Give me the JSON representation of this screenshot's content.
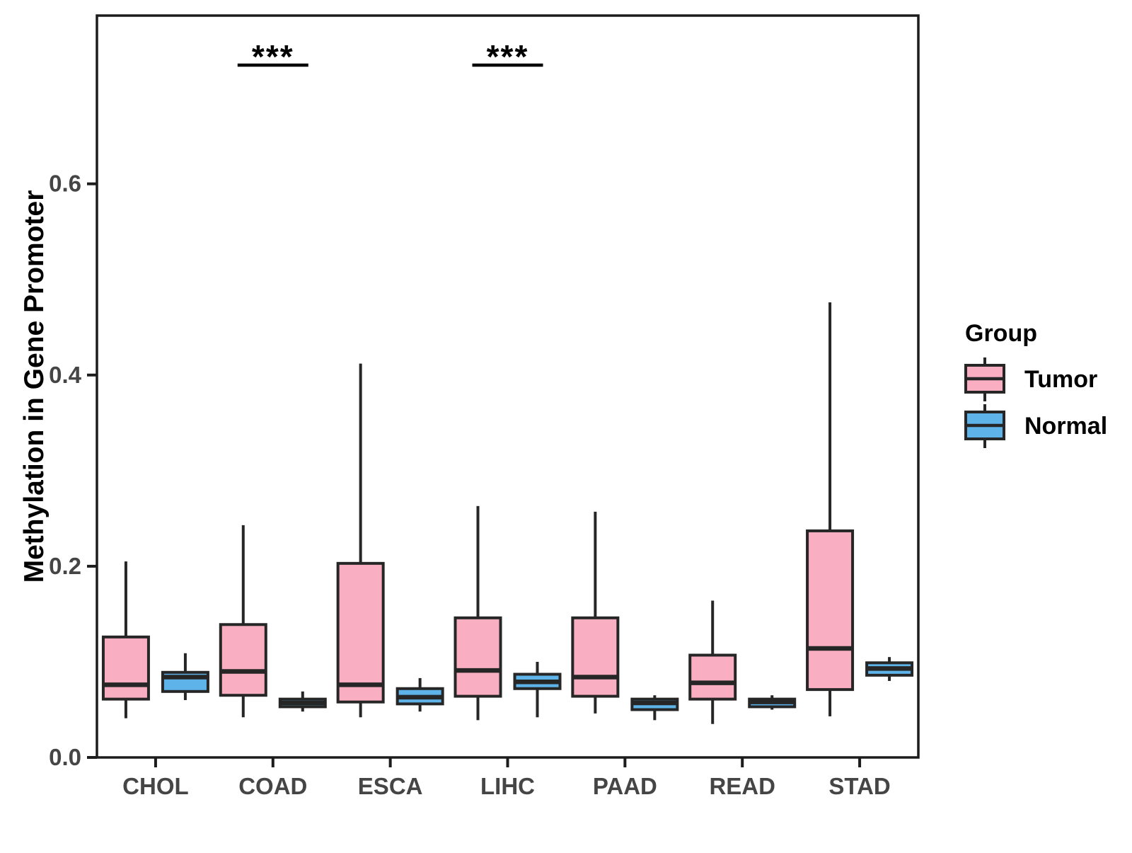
{
  "chart_data": {
    "type": "boxplot",
    "title": "",
    "xlabel": "",
    "ylabel": "Methylation in Gene Promoter",
    "categories": [
      "CHOL",
      "COAD",
      "ESCA",
      "LIHC",
      "PAAD",
      "READ",
      "STAD"
    ],
    "yticks": [
      0.0,
      0.2,
      0.4,
      0.6
    ],
    "ytick_labels": [
      "0.0",
      "0.2",
      "0.4",
      "0.6"
    ],
    "ylim": [
      0.0,
      0.776
    ],
    "grid": "off",
    "legend_title": "Group",
    "legend_position": "right",
    "series": [
      {
        "name": "Tumor",
        "fill": "#F9AFC1",
        "boxes": [
          {
            "category": "CHOL",
            "whisker_low": 0.041,
            "q1": 0.061,
            "median": 0.076,
            "q3": 0.126,
            "whisker_high": 0.205
          },
          {
            "category": "COAD",
            "whisker_low": 0.042,
            "q1": 0.065,
            "median": 0.09,
            "q3": 0.139,
            "whisker_high": 0.243
          },
          {
            "category": "ESCA",
            "whisker_low": 0.042,
            "q1": 0.058,
            "median": 0.076,
            "q3": 0.203,
            "whisker_high": 0.412
          },
          {
            "category": "LIHC",
            "whisker_low": 0.039,
            "q1": 0.064,
            "median": 0.091,
            "q3": 0.146,
            "whisker_high": 0.263
          },
          {
            "category": "PAAD",
            "whisker_low": 0.046,
            "q1": 0.064,
            "median": 0.084,
            "q3": 0.146,
            "whisker_high": 0.257
          },
          {
            "category": "READ",
            "whisker_low": 0.035,
            "q1": 0.061,
            "median": 0.078,
            "q3": 0.107,
            "whisker_high": 0.164
          },
          {
            "category": "STAD",
            "whisker_low": 0.043,
            "q1": 0.071,
            "median": 0.114,
            "q3": 0.237,
            "whisker_high": 0.476
          }
        ]
      },
      {
        "name": "Normal",
        "fill": "#5EB3E8",
        "boxes": [
          {
            "category": "CHOL",
            "whisker_low": 0.06,
            "q1": 0.069,
            "median": 0.084,
            "q3": 0.089,
            "whisker_high": 0.109
          },
          {
            "category": "COAD",
            "whisker_low": 0.048,
            "q1": 0.053,
            "median": 0.057,
            "q3": 0.061,
            "whisker_high": 0.069
          },
          {
            "category": "ESCA",
            "whisker_low": 0.048,
            "q1": 0.056,
            "median": 0.063,
            "q3": 0.072,
            "whisker_high": 0.083
          },
          {
            "category": "LIHC",
            "whisker_low": 0.042,
            "q1": 0.072,
            "median": 0.079,
            "q3": 0.087,
            "whisker_high": 0.1
          },
          {
            "category": "PAAD",
            "whisker_low": 0.039,
            "q1": 0.05,
            "median": 0.057,
            "q3": 0.061,
            "whisker_high": 0.065
          },
          {
            "category": "READ",
            "whisker_low": 0.05,
            "q1": 0.053,
            "median": 0.058,
            "q3": 0.061,
            "whisker_high": 0.065
          },
          {
            "category": "STAD",
            "whisker_low": 0.08,
            "q1": 0.086,
            "median": 0.093,
            "q3": 0.099,
            "whisker_high": 0.105
          }
        ]
      }
    ],
    "significance": [
      {
        "category": "COAD",
        "label": "***"
      },
      {
        "category": "LIHC",
        "label": "***"
      }
    ]
  },
  "style": {
    "box_border_color": "#262626",
    "axis_color": "#1C1C1C",
    "tick_label_color": "#454545",
    "text_color": "#000000",
    "background": "#FFFFFF"
  }
}
